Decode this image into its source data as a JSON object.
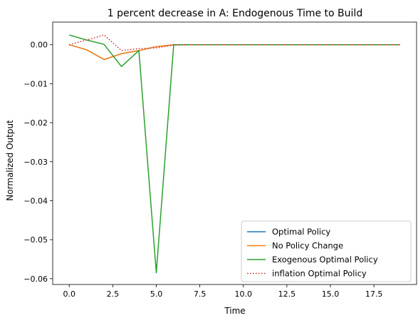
{
  "chart_data": {
    "type": "line",
    "title": "1 percent decrease in A: Endogenous Time to Build",
    "xlabel": "Time",
    "ylabel": "Normalized Output",
    "xlim": [
      -0.95,
      19.95
    ],
    "ylim": [
      -0.0615,
      0.0058
    ],
    "xticks": [
      0.0,
      2.5,
      5.0,
      7.5,
      10.0,
      12.5,
      15.0,
      17.5
    ],
    "xtick_labels": [
      "0.0",
      "2.5",
      "5.0",
      "7.5",
      "10.0",
      "12.5",
      "15.0",
      "17.5"
    ],
    "yticks": [
      0.0,
      -0.01,
      -0.02,
      -0.03,
      -0.04,
      -0.05,
      -0.06
    ],
    "ytick_labels": [
      "0.00",
      "−0.01",
      "−0.02",
      "−0.03",
      "−0.04",
      "−0.05",
      "−0.06"
    ],
    "grid": false,
    "legend_position": "lower-right",
    "x": [
      0,
      1,
      2,
      3,
      4,
      5,
      6,
      7,
      8,
      9,
      10,
      11,
      12,
      13,
      14,
      15,
      16,
      17,
      18,
      19
    ],
    "series": [
      {
        "name": "Optimal Policy",
        "color": "#1f77b4",
        "style": "solid",
        "values": [
          0.0,
          -0.0013,
          -0.0038,
          -0.0023,
          -0.0015,
          -0.0005,
          0.0,
          0.0,
          0.0,
          0.0,
          0.0,
          0.0,
          0.0,
          0.0,
          0.0,
          0.0,
          0.0,
          0.0,
          0.0,
          0.0
        ]
      },
      {
        "name": "No Policy Change",
        "color": "#ff7f0e",
        "style": "solid",
        "values": [
          0.0,
          -0.0013,
          -0.0038,
          -0.0023,
          -0.0015,
          -0.0005,
          0.0,
          0.0,
          0.0,
          0.0,
          0.0,
          0.0,
          0.0,
          0.0,
          0.0,
          0.0,
          0.0,
          0.0,
          0.0,
          0.0
        ]
      },
      {
        "name": "Exogenous Optimal Policy",
        "color": "#2ca02c",
        "style": "solid",
        "values": [
          0.0025,
          0.0012,
          0.0001,
          -0.0056,
          -0.0015,
          -0.0585,
          0.0,
          0.0,
          0.0,
          0.0,
          0.0,
          0.0,
          0.0,
          0.0,
          0.0,
          0.0,
          0.0,
          0.0,
          0.0,
          0.0
        ]
      },
      {
        "name": "inflation Optimal Policy",
        "color": "#d62728",
        "style": "dotted",
        "values": [
          0.0,
          0.0012,
          0.0025,
          -0.0015,
          -0.001,
          -0.0008,
          -0.0001,
          0.0,
          0.0,
          0.0,
          0.0,
          0.0,
          0.0,
          0.0,
          0.0,
          0.0,
          0.0,
          0.0,
          0.0,
          0.0
        ]
      }
    ]
  }
}
